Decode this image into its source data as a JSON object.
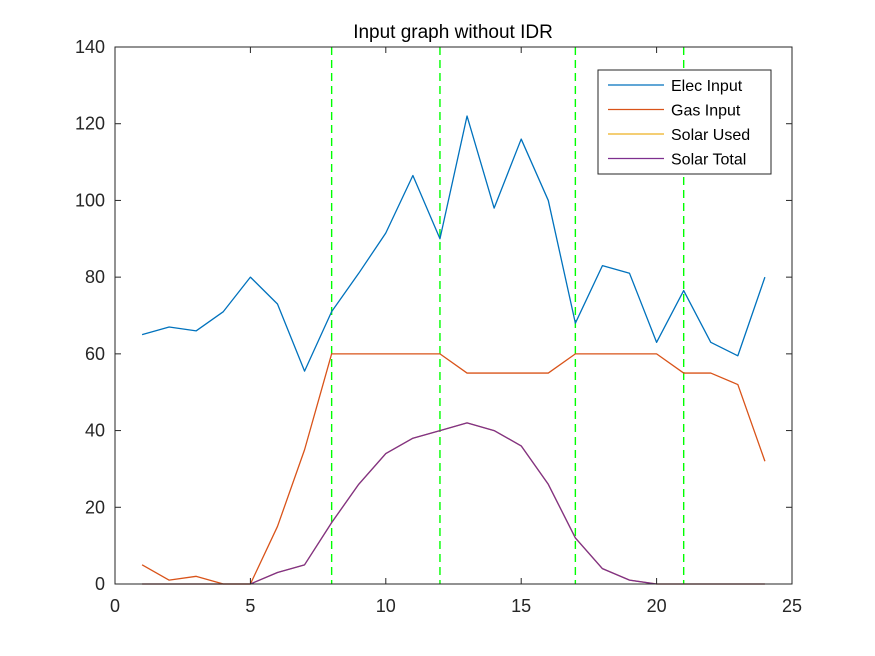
{
  "chart_data": {
    "type": "line",
    "title": "Input graph without IDR",
    "xlabel": "",
    "ylabel": "",
    "xlim": [
      0,
      25
    ],
    "ylim": [
      0,
      140
    ],
    "xticks": [
      0,
      5,
      10,
      15,
      20,
      25
    ],
    "yticks": [
      0,
      20,
      40,
      60,
      80,
      100,
      120,
      140
    ],
    "grid": false,
    "legend_position": "top-right",
    "x": [
      1,
      2,
      3,
      4,
      5,
      6,
      7,
      8,
      9,
      10,
      11,
      12,
      13,
      14,
      15,
      16,
      17,
      18,
      19,
      20,
      21,
      22,
      23,
      24
    ],
    "series": [
      {
        "name": "Elec Input",
        "color": "#0072BD",
        "values": [
          65,
          67,
          66,
          71,
          80,
          73,
          55.5,
          71,
          81,
          91.5,
          106.5,
          90,
          122,
          98,
          116,
          100,
          68,
          83,
          81,
          63,
          76.5,
          63,
          59.5,
          80
        ]
      },
      {
        "name": "Gas Input",
        "color": "#D95319",
        "values": [
          5,
          1,
          2,
          0,
          0,
          15,
          35,
          60,
          60,
          60,
          60,
          60,
          55,
          55,
          55,
          55,
          60,
          60,
          60,
          60,
          55,
          55,
          52,
          32
        ]
      },
      {
        "name": "Solar Used",
        "color": "#EDB120",
        "values": [
          0,
          0,
          0,
          0,
          0,
          3,
          5,
          16,
          26,
          34,
          38,
          40,
          42,
          40,
          36,
          26,
          12,
          4,
          1,
          0,
          0,
          0,
          0,
          0
        ]
      },
      {
        "name": "Solar Total",
        "color": "#7E2F8E",
        "values": [
          0,
          0,
          0,
          0,
          0,
          3,
          5,
          16,
          26,
          34,
          38,
          40,
          42,
          40,
          36,
          26,
          12,
          4,
          1,
          0,
          0,
          0,
          0,
          0
        ]
      }
    ],
    "vertical_lines": {
      "x": [
        8,
        12,
        17,
        21
      ],
      "color": "#00FF00",
      "style": "dashed"
    }
  }
}
